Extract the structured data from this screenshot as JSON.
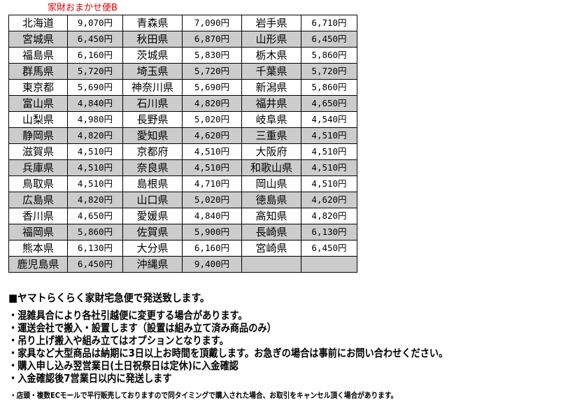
{
  "title": "家財おまかせ便B",
  "colors": {
    "title": "#e00000",
    "row_alt": "#cccccc"
  },
  "rows": [
    [
      [
        "北海道",
        "9,070円"
      ],
      [
        "青森県",
        "7,090円"
      ],
      [
        "岩手県",
        "6,710円"
      ]
    ],
    [
      [
        "宮城県",
        "6,450円"
      ],
      [
        "秋田県",
        "6,870円"
      ],
      [
        "山形県",
        "6,450円"
      ]
    ],
    [
      [
        "福島県",
        "6,160円"
      ],
      [
        "茨城県",
        "5,830円"
      ],
      [
        "栃木県",
        "5,860円"
      ]
    ],
    [
      [
        "群馬県",
        "5,720円"
      ],
      [
        "埼玉県",
        "5,720円"
      ],
      [
        "千葉県",
        "5,720円"
      ]
    ],
    [
      [
        "東京都",
        "5,690円"
      ],
      [
        "神奈川県",
        "5,690円"
      ],
      [
        "新潟県",
        "5,860円"
      ]
    ],
    [
      [
        "富山県",
        "4,840円"
      ],
      [
        "石川県",
        "4,820円"
      ],
      [
        "福井県",
        "4,650円"
      ]
    ],
    [
      [
        "山梨県",
        "4,980円"
      ],
      [
        "長野県",
        "5,020円"
      ],
      [
        "岐阜県",
        "4,540円"
      ]
    ],
    [
      [
        "静岡県",
        "4,820円"
      ],
      [
        "愛知県",
        "4,620円"
      ],
      [
        "三重県",
        "4,510円"
      ]
    ],
    [
      [
        "滋賀県",
        "4,510円"
      ],
      [
        "京都府",
        "4,510円"
      ],
      [
        "大阪府",
        "4,510円"
      ]
    ],
    [
      [
        "兵庫県",
        "4,510円"
      ],
      [
        "奈良県",
        "4,510円"
      ],
      [
        "和歌山県",
        "4,510円"
      ]
    ],
    [
      [
        "鳥取県",
        "4,510円"
      ],
      [
        "島根県",
        "4,710円"
      ],
      [
        "岡山県",
        "4,510円"
      ]
    ],
    [
      [
        "広島県",
        "4,820円"
      ],
      [
        "山口県",
        "5,020円"
      ],
      [
        "徳島県",
        "4,620円"
      ]
    ],
    [
      [
        "香川県",
        "4,650円"
      ],
      [
        "愛媛県",
        "4,840円"
      ],
      [
        "高知県",
        "4,820円"
      ]
    ],
    [
      [
        "福岡県",
        "5,860円"
      ],
      [
        "佐賀県",
        "5,900円"
      ],
      [
        "長崎県",
        "6,130円"
      ]
    ],
    [
      [
        "熊本県",
        "6,130円"
      ],
      [
        "大分県",
        "6,160円"
      ],
      [
        "宮崎県",
        "6,450円"
      ]
    ],
    [
      [
        "鹿児島県",
        "6,450円"
      ],
      [
        "沖縄県",
        "9,400円"
      ],
      [
        "",
        ""
      ]
    ]
  ],
  "notes": {
    "heading": "■ヤマトらくらく家財宅急便で発送致します。",
    "bullets": [
      "・混雑具合により各社引越便に変更する場合があります。",
      "・運送会社で搬入・設置します（設置は組み立て済み商品のみ）",
      "・吊り上げ搬入や組み立てはオプションとなります。",
      "・家具など大型商品は納期に3日以上お時間を頂戴します。お急ぎの場合は事前にお問い合わせください。",
      "・購入申し込み翌営業日(土日祝祭日は定休)に入金確認",
      "・入金確認後7営業日以内に発送します"
    ],
    "footnote": "・店頭・複数ECモールで平行販売しておりますので同タイミングで購入された場合、お取引をキャンセル頂く場合があります。"
  }
}
